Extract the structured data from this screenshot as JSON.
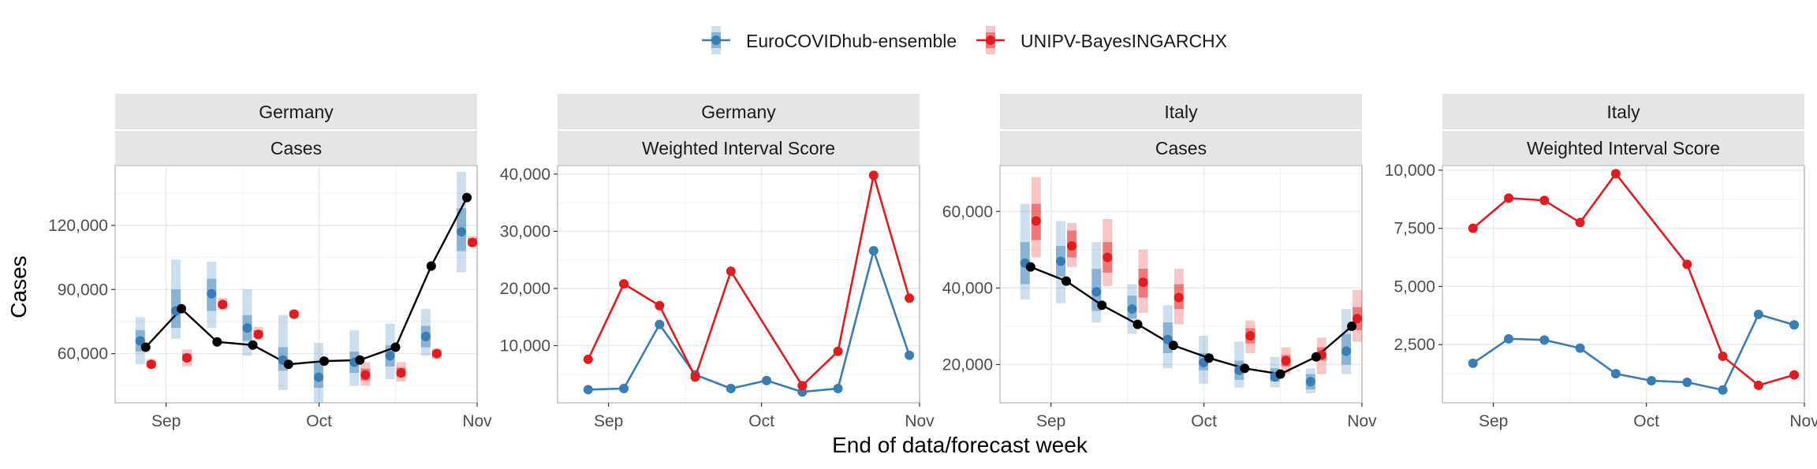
{
  "legend": {
    "position": "top",
    "entries": [
      {
        "name": "EuroCOVIDhub-ensemble",
        "color": "#377EB8"
      },
      {
        "name": "UNIPV-BayesINGARCHX",
        "color": "#E41A1C"
      }
    ]
  },
  "ylabel": "Cases",
  "xlabel": "End of data/forecast week",
  "colors": {
    "observed": "#000000",
    "strip_bg": "#E5E5E5",
    "grid_major": "#EBEBEB",
    "panel_border": "#B3B3B3"
  },
  "x_ticks": [
    "Sep",
    "Oct",
    "Nov"
  ],
  "chart_data": [
    {
      "type": "line",
      "facet": [
        "Germany",
        "Cases"
      ],
      "ylim": [
        37000,
        148000
      ],
      "yticks": [
        60000,
        90000,
        120000
      ],
      "ytick_labels": [
        "60,000",
        "90,000",
        "120,000"
      ],
      "observed": {
        "x": [
          "2021-08-28",
          "2021-09-04",
          "2021-09-11",
          "2021-09-18",
          "2021-09-25",
          "2021-10-02",
          "2021-10-09",
          "2021-10-16",
          "2021-10-23",
          "2021-10-30"
        ],
        "y": [
          63000,
          81000,
          65500,
          64000,
          55000,
          56500,
          57000,
          63000,
          101000,
          133000
        ]
      },
      "series": [
        {
          "name": "EuroCOVIDhub-ensemble",
          "x": [
            "2021-08-28",
            "2021-09-04",
            "2021-09-11",
            "2021-09-18",
            "2021-09-25",
            "2021-10-02",
            "2021-10-09",
            "2021-10-16",
            "2021-10-23",
            "2021-10-30"
          ],
          "median": [
            66000,
            80000,
            88000,
            72000,
            57000,
            49000,
            56000,
            59000,
            68000,
            117000
          ],
          "inner": [
            [
              61000,
              71000
            ],
            [
              72000,
              90000
            ],
            [
              80000,
              95000
            ],
            [
              66000,
              78000
            ],
            [
              52000,
              63000
            ],
            [
              44000,
              56000
            ],
            [
              51000,
              61000
            ],
            [
              54000,
              64000
            ],
            [
              63000,
              73000
            ],
            [
              108000,
              128000
            ]
          ],
          "outer": [
            [
              55000,
              77000
            ],
            [
              67000,
              104000
            ],
            [
              72000,
              103000
            ],
            [
              59000,
              90000
            ],
            [
              43000,
              78000
            ],
            [
              35000,
              65000
            ],
            [
              45000,
              71000
            ],
            [
              48000,
              74000
            ],
            [
              59000,
              81000
            ],
            [
              98000,
              145000
            ]
          ]
        },
        {
          "name": "UNIPV-BayesINGARCHX",
          "x": [
            "2021-08-28",
            "2021-09-04",
            "2021-09-11",
            "2021-09-18",
            "2021-09-25",
            "2021-10-02",
            "2021-10-09",
            "2021-10-16",
            "2021-10-23",
            "2021-10-30"
          ],
          "median": [
            55000,
            58000,
            83000,
            69000,
            78500,
            null,
            50000,
            51000,
            60000,
            112000
          ],
          "inner": [
            [
              54000,
              56500
            ],
            [
              56500,
              60000
            ],
            [
              81500,
              84500
            ],
            [
              67500,
              71000
            ],
            [
              77500,
              79500
            ],
            null,
            [
              47500,
              53000
            ],
            [
              49000,
              53500
            ],
            [
              58500,
              61500
            ],
            [
              111000,
              114000
            ]
          ],
          "outer": [
            [
              53000,
              57500
            ],
            [
              54000,
              62000
            ],
            [
              80500,
              86000
            ],
            [
              66500,
              72500
            ],
            [
              76500,
              80500
            ],
            null,
            [
              45000,
              56000
            ],
            [
              47000,
              56000
            ],
            [
              57500,
              62500
            ],
            [
              110000,
              115000
            ]
          ]
        }
      ]
    },
    {
      "type": "line",
      "facet": [
        "Germany",
        "Weighted Interval Score"
      ],
      "ylim": [
        0,
        41500
      ],
      "yticks": [
        10000,
        20000,
        30000,
        40000
      ],
      "ytick_labels": [
        "10,000",
        "20,000",
        "30,000",
        "40,000"
      ],
      "series": [
        {
          "name": "EuroCOVIDhub-ensemble",
          "x": [
            "2021-08-28",
            "2021-09-04",
            "2021-09-11",
            "2021-09-18",
            "2021-09-25",
            "2021-10-02",
            "2021-10-09",
            "2021-10-16",
            "2021-10-23",
            "2021-10-30"
          ],
          "y": [
            2300,
            2500,
            13700,
            4900,
            2500,
            3900,
            1900,
            2500,
            26600,
            8300
          ]
        },
        {
          "name": "UNIPV-BayesINGARCHX",
          "x": [
            "2021-08-28",
            "2021-09-04",
            "2021-09-11",
            "2021-09-18",
            "2021-09-25",
            "2021-10-02",
            "2021-10-09",
            "2021-10-16",
            "2021-10-23",
            "2021-10-30"
          ],
          "y": [
            7600,
            20800,
            17000,
            4500,
            23000,
            null,
            3000,
            9000,
            39800,
            18300
          ]
        }
      ]
    },
    {
      "type": "line",
      "facet": [
        "Italy",
        "Cases"
      ],
      "ylim": [
        10000,
        72000
      ],
      "yticks": [
        20000,
        40000,
        60000
      ],
      "ytick_labels": [
        "20,000",
        "40,000",
        "60,000"
      ],
      "observed": {
        "x": [
          "2021-08-28",
          "2021-09-04",
          "2021-09-11",
          "2021-09-18",
          "2021-09-25",
          "2021-10-02",
          "2021-10-09",
          "2021-10-16",
          "2021-10-23",
          "2021-10-30"
        ],
        "y": [
          45500,
          41800,
          35500,
          30500,
          25000,
          21700,
          19000,
          17500,
          22000,
          30000
        ]
      },
      "series": [
        {
          "name": "EuroCOVIDhub-ensemble",
          "x": [
            "2021-08-28",
            "2021-09-04",
            "2021-09-11",
            "2021-09-18",
            "2021-09-25",
            "2021-10-02",
            "2021-10-09",
            "2021-10-16",
            "2021-10-23",
            "2021-10-30"
          ],
          "median": [
            46500,
            47000,
            39000,
            34500,
            26500,
            20500,
            18500,
            16800,
            15500,
            23500
          ],
          "inner": [
            [
              41000,
              52000
            ],
            [
              43000,
              51000
            ],
            [
              34000,
              45000
            ],
            [
              32000,
              38000
            ],
            [
              23000,
              31000
            ],
            [
              18500,
              23000
            ],
            [
              16000,
              21000
            ],
            [
              15500,
              19000
            ],
            [
              13500,
              17500
            ],
            [
              20000,
              28000
            ]
          ],
          "outer": [
            [
              37000,
              62000
            ],
            [
              36000,
              57500
            ],
            [
              31000,
              52000
            ],
            [
              28000,
              41000
            ],
            [
              19000,
              35500
            ],
            [
              15000,
              27500
            ],
            [
              14000,
              26000
            ],
            [
              14000,
              22000
            ],
            [
              12500,
              19000
            ],
            [
              17500,
              34500
            ]
          ]
        },
        {
          "name": "UNIPV-BayesINGARCHX",
          "x": [
            "2021-08-28",
            "2021-09-04",
            "2021-09-11",
            "2021-09-18",
            "2021-09-25",
            "2021-10-02",
            "2021-10-09",
            "2021-10-16",
            "2021-10-23",
            "2021-10-30"
          ],
          "median": [
            57500,
            51000,
            48000,
            41500,
            37500,
            null,
            27500,
            21000,
            22500,
            32000
          ],
          "inner": [
            [
              52500,
              62000
            ],
            [
              48000,
              55000
            ],
            [
              44000,
              52000
            ],
            [
              37500,
              45000
            ],
            [
              34500,
              41000
            ],
            null,
            [
              25500,
              29500
            ],
            [
              19500,
              22500
            ],
            [
              21000,
              24500
            ],
            [
              29000,
              35000
            ]
          ],
          "outer": [
            [
              48000,
              69000
            ],
            [
              45500,
              57000
            ],
            [
              40500,
              58000
            ],
            [
              33500,
              50000
            ],
            [
              30500,
              45000
            ],
            null,
            [
              23000,
              31500
            ],
            [
              17500,
              24500
            ],
            [
              17500,
              27000
            ],
            [
              26000,
              39500
            ]
          ]
        }
      ]
    },
    {
      "type": "line",
      "facet": [
        "Italy",
        "Weighted Interval Score"
      ],
      "ylim": [
        0,
        10200
      ],
      "yticks": [
        2500,
        5000,
        7500,
        10000
      ],
      "ytick_labels": [
        "2,500",
        "5,000",
        "7,500",
        "10,000"
      ],
      "series": [
        {
          "name": "EuroCOVIDhub-ensemble",
          "x": [
            "2021-08-28",
            "2021-09-04",
            "2021-09-11",
            "2021-09-18",
            "2021-09-25",
            "2021-10-02",
            "2021-10-09",
            "2021-10-16",
            "2021-10-23",
            "2021-10-30"
          ],
          "y": [
            1700,
            2750,
            2700,
            2350,
            1250,
            950,
            880,
            550,
            3800,
            3350
          ]
        },
        {
          "name": "UNIPV-BayesINGARCHX",
          "x": [
            "2021-08-28",
            "2021-09-04",
            "2021-09-11",
            "2021-09-18",
            "2021-09-25",
            "2021-10-02",
            "2021-10-09",
            "2021-10-16",
            "2021-10-23",
            "2021-10-30"
          ],
          "y": [
            7500,
            8800,
            8700,
            7750,
            9850,
            null,
            5950,
            2000,
            750,
            1200
          ]
        }
      ]
    }
  ]
}
